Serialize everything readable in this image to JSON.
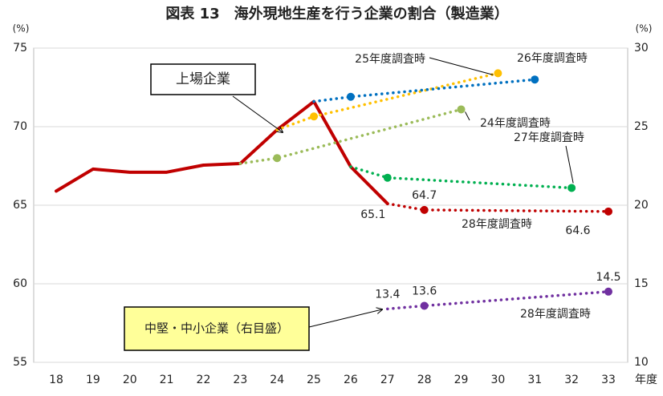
{
  "chart_data": {
    "type": "line",
    "title": "図表 13　海外現地生産を行う企業の割合（製造業）",
    "y_unit": "(%)",
    "y2_unit": "(%)",
    "x_label": "年度",
    "categories": [
      18,
      19,
      20,
      21,
      22,
      23,
      24,
      25,
      26,
      27,
      28,
      29,
      30,
      31,
      32,
      33
    ],
    "xlim": [
      18,
      33
    ],
    "ylim": [
      55,
      75
    ],
    "yticks": [
      55,
      60,
      65,
      70,
      75
    ],
    "y2lim": [
      10,
      30
    ],
    "y2ticks": [
      10,
      15,
      20,
      25,
      30
    ],
    "grid": true,
    "series": [
      {
        "name": "上場企業",
        "color": "#c00000",
        "style": "solid",
        "x": [
          18,
          19,
          20,
          21,
          22,
          23,
          24,
          25,
          26,
          27
        ],
        "values": [
          65.9,
          67.3,
          67.1,
          67.1,
          67.55,
          67.65,
          69.8,
          71.6,
          67.45,
          65.1
        ]
      },
      {
        "name": "25年度調査時",
        "color": "#ffc000",
        "style": "dotted",
        "x": [
          24,
          25,
          30
        ],
        "values": [
          69.8,
          70.65,
          73.4
        ]
      },
      {
        "name": "26年度調査時",
        "color": "#0070c0",
        "style": "dotted",
        "x": [
          25,
          26,
          31
        ],
        "values": [
          71.6,
          71.9,
          73.0
        ]
      },
      {
        "name": "24年度調査時",
        "color": "#9bbb59",
        "style": "dotted",
        "x": [
          23,
          24,
          29
        ],
        "values": [
          67.65,
          68.0,
          71.1
        ]
      },
      {
        "name": "27年度調査時",
        "color": "#00b050",
        "style": "dotted",
        "x": [
          26,
          27,
          32
        ],
        "values": [
          67.45,
          66.75,
          66.1
        ]
      },
      {
        "name": "28年度調査時",
        "color": "#c00000",
        "style": "dotted",
        "x": [
          27,
          28,
          33
        ],
        "values": [
          65.1,
          64.7,
          64.6
        ],
        "value_labels": [
          "65.1",
          "64.7",
          "64.6"
        ]
      },
      {
        "name": "中堅・中小企業（右目盛）",
        "color": "#7030a0",
        "style": "dotted",
        "axis": "y2",
        "x": [
          27,
          28,
          33
        ],
        "values": [
          13.4,
          13.6,
          14.5
        ],
        "value_labels": [
          "13.4",
          "13.6",
          "14.5"
        ]
      }
    ],
    "annotations": [
      "28年度調査時"
    ]
  }
}
